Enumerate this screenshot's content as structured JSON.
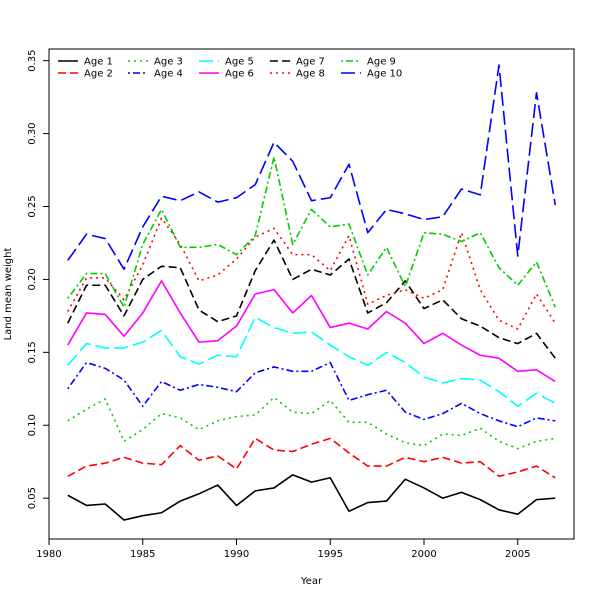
{
  "chart_data": {
    "type": "line",
    "title": "",
    "xlabel": "Year",
    "ylabel": "Land mean weight",
    "xlim": [
      1980,
      2008
    ],
    "ylim": [
      0.022,
      0.358
    ],
    "x_ticks": [
      1980,
      1985,
      1990,
      1995,
      2000,
      2005
    ],
    "y_ticks": [
      0.05,
      0.1,
      0.15,
      0.2,
      0.25,
      0.3,
      0.35
    ],
    "x_tick_labels": [
      "1980",
      "1985",
      "1990",
      "1995",
      "2000",
      "2005"
    ],
    "y_tick_labels": [
      "0.05",
      "0.10",
      "0.15",
      "0.20",
      "0.25",
      "0.30",
      "0.35"
    ],
    "grid": false,
    "legend_position": "top-left",
    "x": [
      1981,
      1982,
      1983,
      1984,
      1985,
      1986,
      1987,
      1988,
      1989,
      1990,
      1991,
      1992,
      1993,
      1994,
      1995,
      1996,
      1997,
      1998,
      1999,
      2000,
      2001,
      2002,
      2003,
      2004,
      2005,
      2006,
      2007
    ],
    "series": [
      {
        "name": "Age 1",
        "color": "#000000",
        "dash": "solid",
        "values": [
          0.052,
          0.045,
          0.046,
          0.035,
          0.038,
          0.04,
          0.048,
          0.053,
          0.059,
          0.045,
          0.055,
          0.057,
          0.066,
          0.061,
          0.064,
          0.041,
          0.047,
          0.048,
          0.063,
          0.057,
          0.05,
          0.054,
          0.049,
          0.042,
          0.039,
          0.049,
          0.05
        ]
      },
      {
        "name": "Age 2",
        "color": "#ff0000",
        "dash": "dashed",
        "values": [
          0.065,
          0.072,
          0.074,
          0.078,
          0.074,
          0.073,
          0.086,
          0.076,
          0.079,
          0.07,
          0.091,
          0.083,
          0.082,
          0.087,
          0.091,
          0.081,
          0.072,
          0.072,
          0.078,
          0.075,
          0.078,
          0.074,
          0.075,
          0.065,
          0.068,
          0.072,
          0.064
        ]
      },
      {
        "name": "Age 3",
        "color": "#00cc00",
        "dash": "dotted",
        "values": [
          0.103,
          0.111,
          0.118,
          0.089,
          0.097,
          0.108,
          0.105,
          0.097,
          0.103,
          0.106,
          0.107,
          0.119,
          0.109,
          0.108,
          0.117,
          0.102,
          0.102,
          0.094,
          0.088,
          0.086,
          0.094,
          0.093,
          0.098,
          0.089,
          0.084,
          0.089,
          0.091
        ]
      },
      {
        "name": "Age 4",
        "color": "#0000ff",
        "dash": "dotdash",
        "values": [
          0.125,
          0.143,
          0.139,
          0.131,
          0.113,
          0.13,
          0.124,
          0.128,
          0.126,
          0.123,
          0.136,
          0.14,
          0.137,
          0.137,
          0.143,
          0.117,
          0.121,
          0.124,
          0.109,
          0.104,
          0.108,
          0.115,
          0.108,
          0.103,
          0.099,
          0.105,
          0.103
        ]
      },
      {
        "name": "Age 5",
        "color": "#00ffff",
        "dash": "longdash",
        "values": [
          0.141,
          0.156,
          0.153,
          0.153,
          0.157,
          0.165,
          0.147,
          0.142,
          0.148,
          0.147,
          0.174,
          0.167,
          0.163,
          0.164,
          0.155,
          0.147,
          0.141,
          0.15,
          0.143,
          0.133,
          0.129,
          0.132,
          0.131,
          0.123,
          0.113,
          0.122,
          0.115
        ]
      },
      {
        "name": "Age 6",
        "color": "#ff00ff",
        "dash": "solid",
        "values": [
          0.155,
          0.177,
          0.176,
          0.161,
          0.177,
          0.199,
          0.177,
          0.157,
          0.158,
          0.168,
          0.19,
          0.193,
          0.177,
          0.189,
          0.167,
          0.17,
          0.166,
          0.178,
          0.17,
          0.156,
          0.163,
          0.155,
          0.148,
          0.146,
          0.137,
          0.138,
          0.13
        ]
      },
      {
        "name": "Age 7",
        "color": "#000000",
        "dash": "dashed",
        "values": [
          0.17,
          0.196,
          0.196,
          0.175,
          0.2,
          0.209,
          0.208,
          0.179,
          0.171,
          0.175,
          0.206,
          0.227,
          0.2,
          0.207,
          0.203,
          0.214,
          0.177,
          0.184,
          0.199,
          0.18,
          0.186,
          0.173,
          0.168,
          0.16,
          0.156,
          0.163,
          0.146
        ]
      },
      {
        "name": "Age 8",
        "color": "#ff0000",
        "dash": "dotted",
        "values": [
          0.178,
          0.201,
          0.201,
          0.186,
          0.21,
          0.242,
          0.224,
          0.199,
          0.203,
          0.214,
          0.229,
          0.235,
          0.217,
          0.217,
          0.206,
          0.23,
          0.183,
          0.189,
          0.193,
          0.187,
          0.193,
          0.232,
          0.193,
          0.172,
          0.166,
          0.19,
          0.17
        ]
      },
      {
        "name": "Age 9",
        "color": "#00cc00",
        "dash": "dotdash",
        "values": [
          0.187,
          0.204,
          0.204,
          0.181,
          0.224,
          0.248,
          0.222,
          0.222,
          0.224,
          0.217,
          0.23,
          0.284,
          0.224,
          0.248,
          0.236,
          0.238,
          0.203,
          0.222,
          0.195,
          0.232,
          0.231,
          0.226,
          0.232,
          0.208,
          0.196,
          0.212,
          0.181
        ]
      },
      {
        "name": "Age 10",
        "color": "#0000ff",
        "dash": "longdash",
        "values": [
          0.213,
          0.231,
          0.228,
          0.207,
          0.236,
          0.257,
          0.254,
          0.26,
          0.253,
          0.256,
          0.265,
          0.294,
          0.281,
          0.254,
          0.256,
          0.279,
          0.232,
          0.248,
          0.245,
          0.241,
          0.243,
          0.262,
          0.258,
          0.347,
          0.216,
          0.328,
          0.251
        ]
      }
    ]
  }
}
